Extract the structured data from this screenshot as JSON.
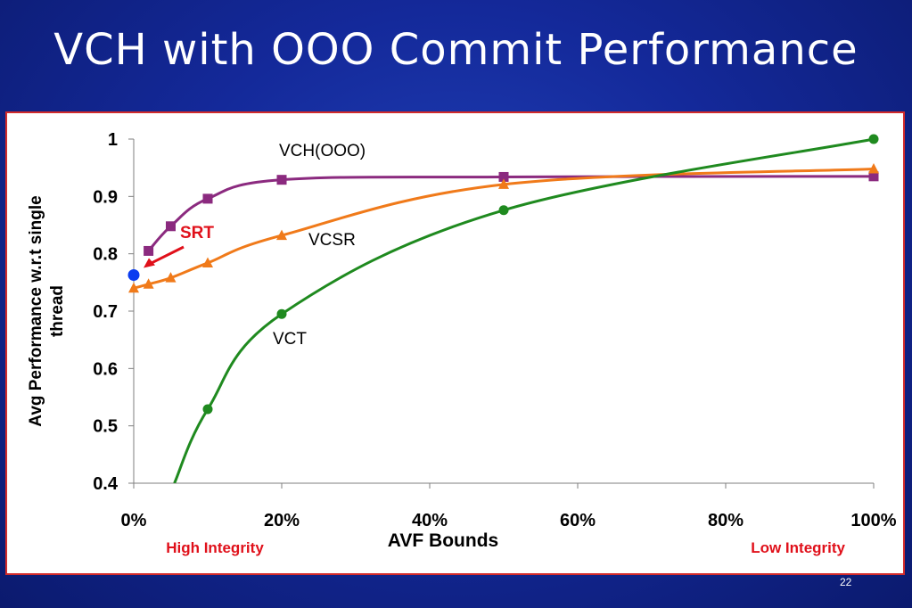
{
  "slide": {
    "title": "VCH with OOO Commit Performance",
    "slide_number": "22"
  },
  "chart_data": {
    "type": "line",
    "xlabel": "AVF Bounds",
    "ylabel_lines": [
      "Avg Performance w.r.t single",
      "thread"
    ],
    "xlim": [
      0,
      100
    ],
    "ylim": [
      0.4,
      1.0
    ],
    "x_ticks": [
      0,
      20,
      40,
      60,
      80,
      100
    ],
    "x_tick_labels": [
      "0%",
      "20%",
      "40%",
      "60%",
      "80%",
      "100%"
    ],
    "y_ticks": [
      0.4,
      0.5,
      0.6,
      0.7,
      0.8,
      0.9,
      1.0
    ],
    "y_tick_labels": [
      "0.4",
      "0.5",
      "0.6",
      "0.7",
      "0.8",
      "0.9",
      "1"
    ],
    "grid": false,
    "legend": "none",
    "x_axis_notes": {
      "left": "High Integrity",
      "right": "Low Integrity",
      "color": "#e0101a"
    },
    "series": [
      {
        "name": "VCH(OOO)",
        "color": "#8b2a7f",
        "marker": "square",
        "x": [
          2,
          5,
          10,
          20,
          50,
          100
        ],
        "y": [
          0.805,
          0.848,
          0.896,
          0.929,
          0.934,
          0.935
        ]
      },
      {
        "name": "VCSR",
        "color": "#f07a1a",
        "marker": "triangle",
        "x": [
          0,
          2,
          5,
          10,
          20,
          50,
          100
        ],
        "y": [
          0.74,
          0.747,
          0.758,
          0.784,
          0.832,
          0.921,
          0.948
        ]
      },
      {
        "name": "VCT",
        "color": "#1f8a1f",
        "marker": "circle",
        "x": [
          5.5,
          10,
          20,
          50,
          100
        ],
        "y": [
          0.4,
          0.529,
          0.695,
          0.876,
          1.0
        ]
      }
    ],
    "points": [
      {
        "name": "SRT",
        "x": 0,
        "y": 0.763,
        "color": "#0a3cf0"
      }
    ],
    "annotations": [
      {
        "text": "VCH(OOO)",
        "target": "VCH(OOO)"
      },
      {
        "text": "VCSR",
        "target": "VCSR"
      },
      {
        "text": "VCT",
        "target": "VCT"
      },
      {
        "text": "SRT",
        "target": "SRT",
        "color": "#e0101a"
      }
    ]
  }
}
